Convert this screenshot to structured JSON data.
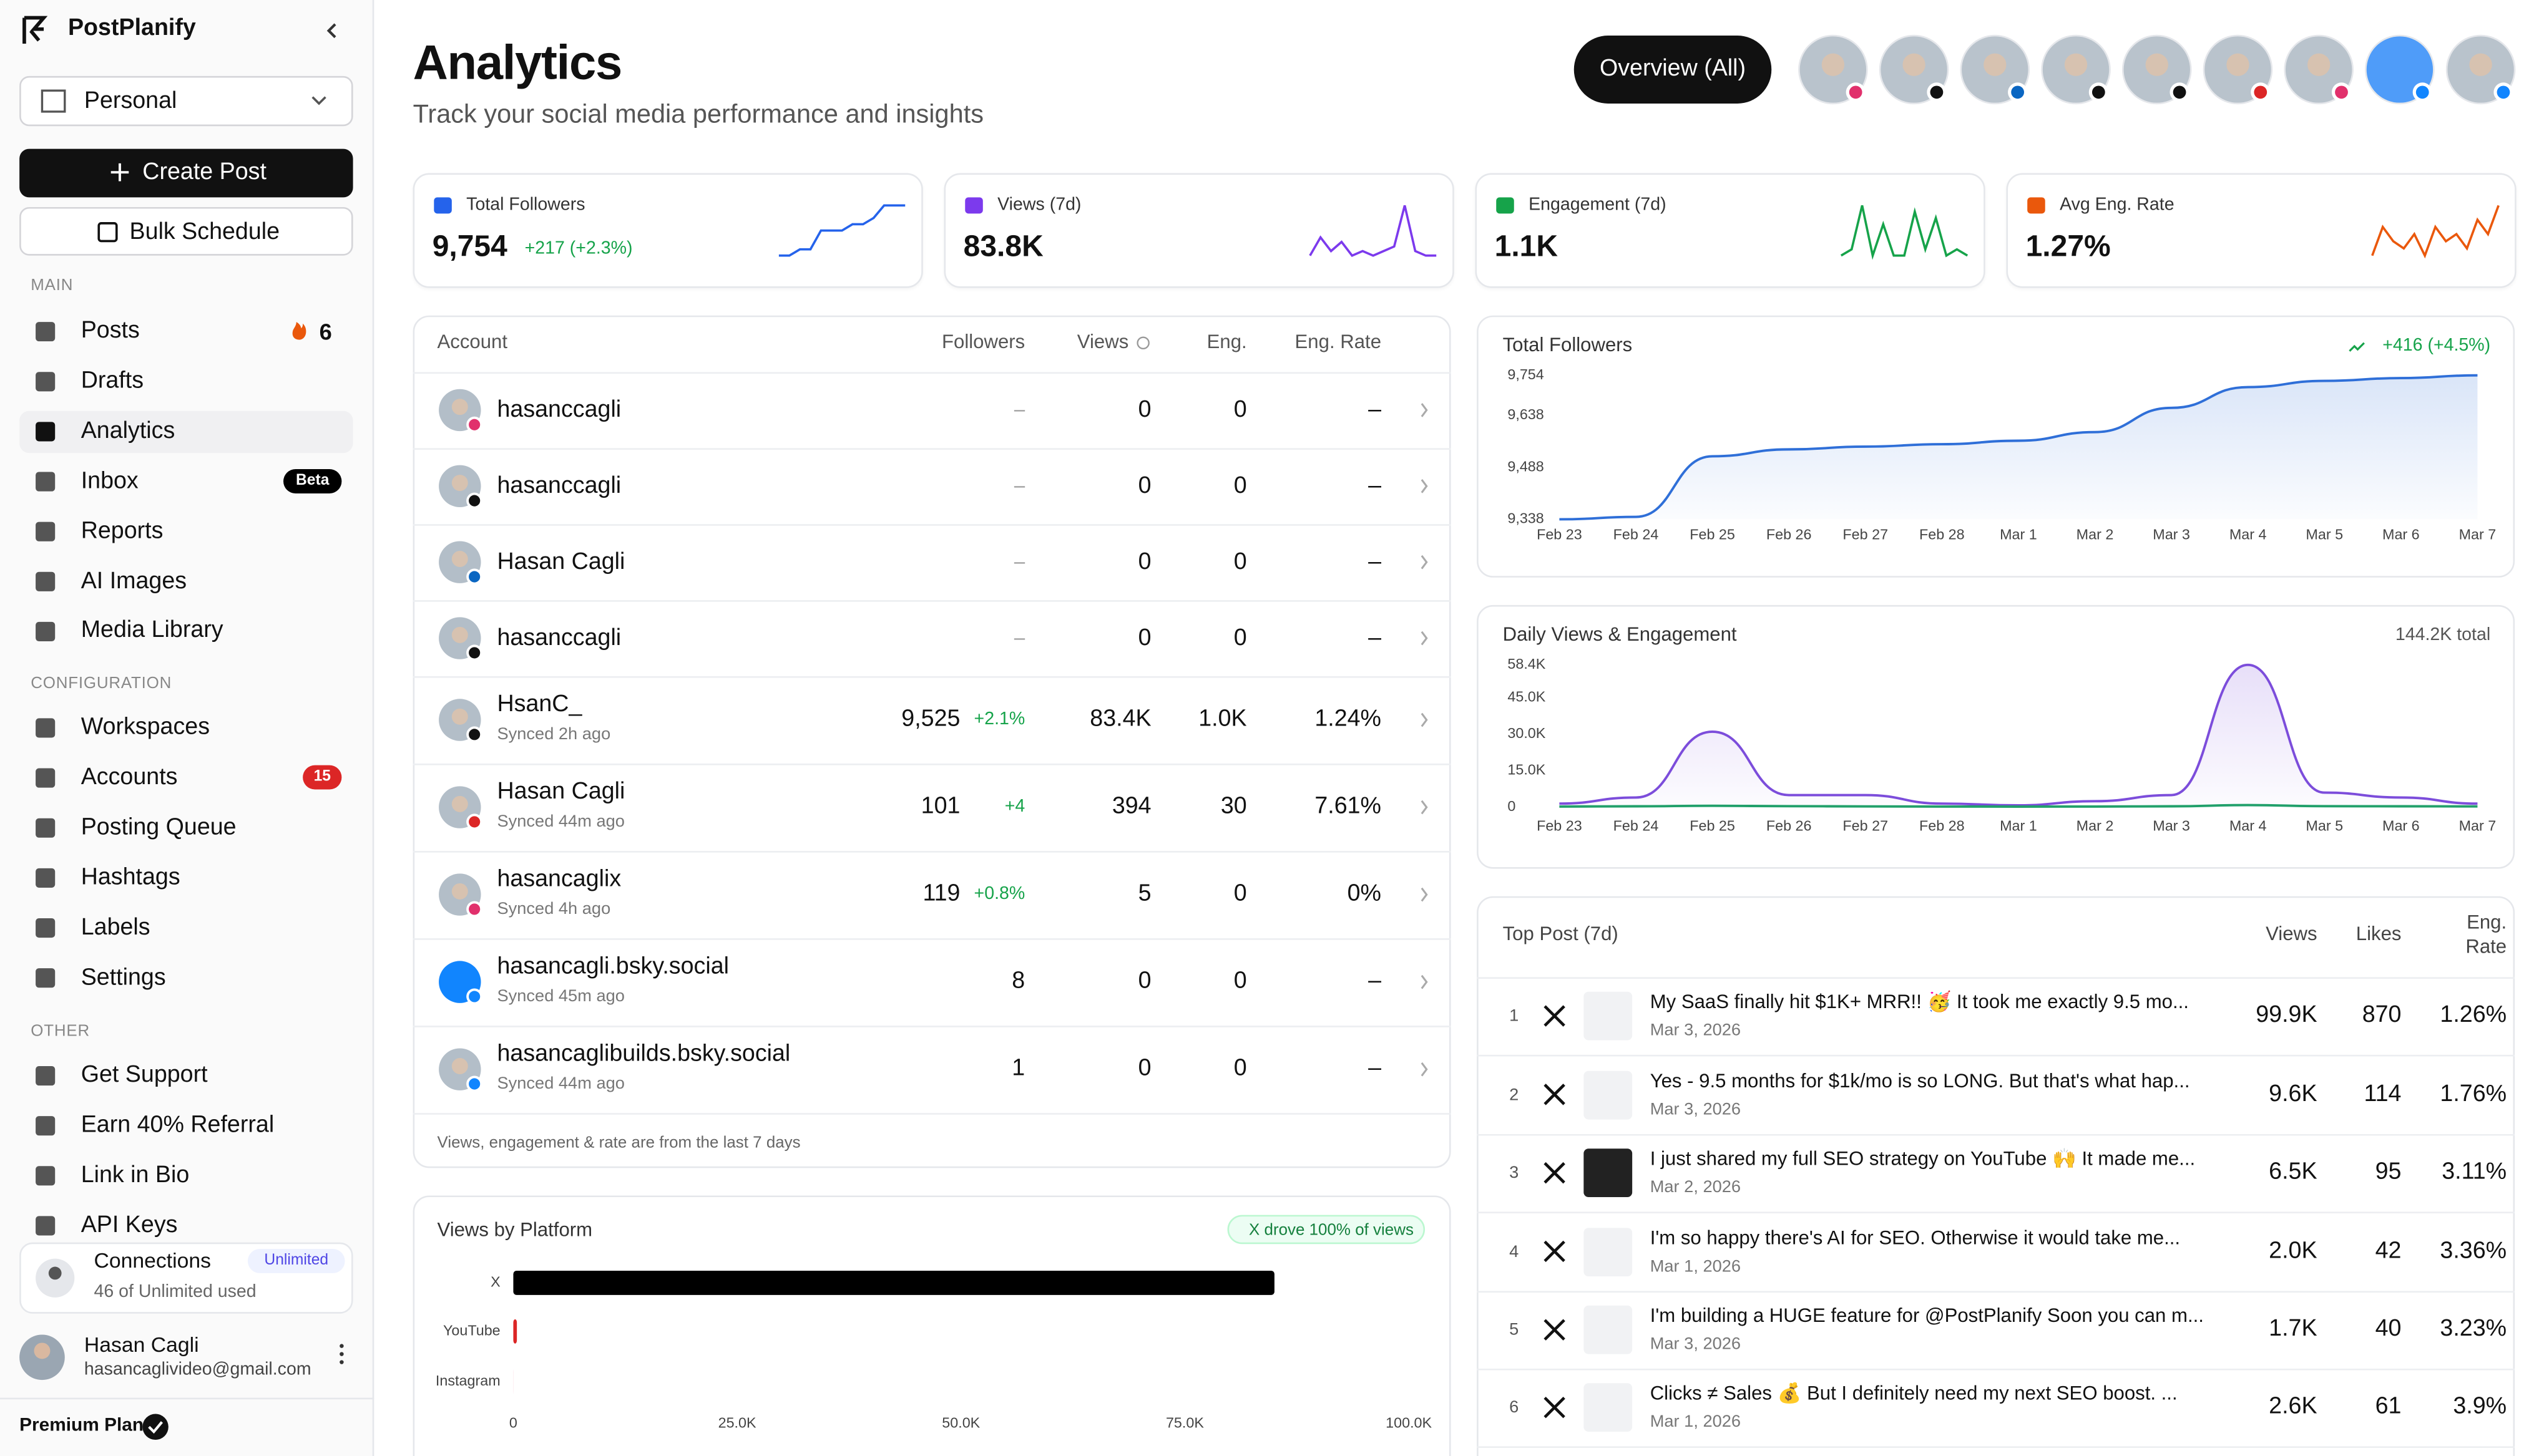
{
  "sidebar": {
    "brand": "PostPlanify",
    "workspace": "Personal",
    "create_button": "Create Post",
    "bulk_button": "Bulk Schedule",
    "sections": [
      {
        "title": "MAIN",
        "items": [
          {
            "label": "Posts",
            "badge": "6"
          },
          {
            "label": "Drafts"
          },
          {
            "label": "Analytics",
            "active": true
          },
          {
            "label": "Inbox",
            "badge": "Beta",
            "badge_color": "#000000"
          },
          {
            "label": "Reports"
          },
          {
            "label": "AI Images"
          },
          {
            "label": "Media Library"
          }
        ]
      },
      {
        "title": "CONFIGURATION",
        "items": [
          {
            "label": "Workspaces"
          },
          {
            "label": "Accounts",
            "badge": "15",
            "badge_color": "#dc2626"
          },
          {
            "label": "Posting Queue"
          },
          {
            "label": "Hashtags"
          },
          {
            "label": "Labels"
          },
          {
            "label": "Settings"
          }
        ]
      },
      {
        "title": "OTHER",
        "items": [
          {
            "label": "Get Support"
          },
          {
            "label": "Earn 40% Referral"
          },
          {
            "label": "Link in Bio"
          },
          {
            "label": "API Keys"
          }
        ]
      }
    ],
    "connections": {
      "title": "Connections",
      "badge": "Unlimited",
      "usage": "46 of Unlimited used"
    },
    "user": {
      "name": "Hasan Cagli",
      "email": "hasancaglivideo@gmail.com"
    },
    "plan": "Premium Plan"
  },
  "header": {
    "title": "Analytics",
    "subtitle": "Track your social media performance and insights",
    "overview_button": "Overview (All)"
  },
  "stats": [
    {
      "label": "Total Followers",
      "value": "9,754",
      "delta": "+217 (+2.3%)",
      "color": "#2563eb",
      "sparkline": [
        2,
        2,
        3,
        3,
        6,
        6,
        6,
        7,
        7,
        8,
        10,
        10,
        10
      ]
    },
    {
      "label": "Views (7d)",
      "value": "83.8K",
      "color": "#7c3aed",
      "sparkline": [
        1,
        5,
        2,
        4,
        1,
        2,
        1,
        2,
        3,
        12,
        2,
        1,
        1
      ]
    },
    {
      "label": "Engagement (7d)",
      "value": "1.1K",
      "color": "#16a34a",
      "sparkline": [
        2,
        3,
        10,
        2,
        7,
        2,
        2,
        9,
        3,
        8,
        2,
        3,
        2
      ]
    },
    {
      "label": "Avg Eng. Rate",
      "value": "1.27%",
      "color": "#ea580c",
      "sparkline": [
        3,
        7,
        5,
        4,
        6,
        3,
        7,
        5,
        6,
        4,
        8,
        6,
        10
      ]
    }
  ],
  "accounts": {
    "headers": [
      "Account",
      "Followers",
      "Views",
      "Eng.",
      "Eng. Rate"
    ],
    "rows": [
      {
        "name": "hasanccagli",
        "followers": "–",
        "views": "0",
        "engagement": "0",
        "rate": "–"
      },
      {
        "name": "hasanccagli",
        "followers": "–",
        "views": "0",
        "engagement": "0",
        "rate": "–"
      },
      {
        "name": "Hasan Cagli",
        "followers": "–",
        "views": "0",
        "engagement": "0",
        "rate": "–"
      },
      {
        "name": "hasanccagli",
        "followers": "–",
        "views": "0",
        "engagement": "0",
        "rate": "–"
      },
      {
        "name": "HsanC_",
        "synced": "Synced 2h ago",
        "followers": "9,525",
        "followers_delta": "+2.1%",
        "views": "83.4K",
        "engagement": "1.0K",
        "rate": "1.24%"
      },
      {
        "name": "Hasan Cagli",
        "synced": "Synced 44m ago",
        "followers": "101",
        "followers_delta": "+4",
        "views": "394",
        "engagement": "30",
        "rate": "7.61%"
      },
      {
        "name": "hasancaglix",
        "synced": "Synced 4h ago",
        "followers": "119",
        "followers_delta": "+0.8%",
        "views": "5",
        "engagement": "0",
        "rate": "0%"
      },
      {
        "name": "hasancagli.bsky.social",
        "synced": "Synced 45m ago",
        "followers": "8",
        "views": "0",
        "engagement": "0",
        "rate": "–"
      },
      {
        "name": "hasancaglibuilds.bsky.social",
        "synced": "Synced 44m ago",
        "followers": "1",
        "views": "0",
        "engagement": "0",
        "rate": "–"
      }
    ],
    "note": "Views, engagement & rate are from the last 7 days"
  },
  "top_posts": {
    "headers": [
      "Top Post (7d)",
      "Views",
      "Likes",
      "Eng. Rate"
    ],
    "rows": [
      {
        "rank": "1",
        "text": "My SaaS finally hit $1K+ MRR!! 🥳 It took me exactly 9.5 mo...",
        "date": "Mar 3, 2026",
        "views": "99.9K",
        "likes": "870",
        "rate": "1.26%"
      },
      {
        "rank": "2",
        "text": "Yes - 9.5 months for $1k/mo is so LONG. But that's what hap...",
        "date": "Mar 3, 2026",
        "views": "9.6K",
        "likes": "114",
        "rate": "1.76%"
      },
      {
        "rank": "3",
        "text": "I just shared my full SEO strategy on YouTube 🙌 It made me...",
        "date": "Mar 2, 2026",
        "views": "6.5K",
        "likes": "95",
        "rate": "3.11%"
      },
      {
        "rank": "4",
        "text": "I'm so happy there's AI for SEO. Otherwise it would take me...",
        "date": "Mar 1, 2026",
        "views": "2.0K",
        "likes": "42",
        "rate": "3.36%"
      },
      {
        "rank": "5",
        "text": "I'm building a HUGE feature for @PostPlanify Soon you can m...",
        "date": "Mar 3, 2026",
        "views": "1.7K",
        "likes": "40",
        "rate": "3.23%"
      },
      {
        "rank": "6",
        "text": "Clicks ≠ Sales 💰 But I definitely need my next SEO boost. ...",
        "date": "Mar 1, 2026",
        "views": "2.6K",
        "likes": "61",
        "rate": "3.9%"
      }
    ]
  },
  "chart_data": [
    {
      "type": "line",
      "title": "Total Followers",
      "annotation": "+416 (+4.5%)",
      "categories": [
        "Feb 23",
        "Feb 24",
        "Feb 25",
        "Feb 26",
        "Feb 27",
        "Feb 28",
        "Mar 1",
        "Mar 2",
        "Mar 3",
        "Mar 4",
        "Mar 5",
        "Mar 6",
        "Mar 7"
      ],
      "series": [
        {
          "color": "#2f6fd8",
          "values": [
            9338,
            9345,
            9520,
            9540,
            9548,
            9555,
            9565,
            9590,
            9660,
            9720,
            9738,
            9746,
            9754
          ]
        }
      ],
      "ylim": [
        9338,
        9754
      ],
      "yticks": [
        {
          "value": 9338,
          "label": "9,338"
        },
        {
          "value": 9488,
          "label": "9,488"
        },
        {
          "value": 9638,
          "label": "9,638"
        },
        {
          "value": 9754,
          "label": "9,754"
        }
      ]
    },
    {
      "type": "line",
      "title": "Daily Views & Engagement",
      "annotation": "144.2K total",
      "categories": [
        "Feb 23",
        "Feb 24",
        "Feb 25",
        "Feb 26",
        "Feb 27",
        "Feb 28",
        "Mar 1",
        "Mar 2",
        "Mar 3",
        "Mar 4",
        "Mar 5",
        "Mar 6",
        "Mar 7"
      ],
      "series": [
        {
          "color": "#7c4ddb",
          "values": [
            1500,
            4000,
            31000,
            5000,
            5000,
            1500,
            800,
            2500,
            5000,
            58400,
            6000,
            4000,
            1500
          ]
        },
        {
          "color": "#22a06b",
          "values": [
            300,
            400,
            600,
            450,
            350,
            300,
            250,
            300,
            400,
            900,
            450,
            400,
            350
          ]
        }
      ],
      "ylim": [
        0,
        58400
      ],
      "yticks": [
        0,
        {
          "value": 15000,
          "label": "15.0K"
        },
        {
          "value": 30000,
          "label": "30.0K"
        },
        {
          "value": 45000,
          "label": "45.0K"
        },
        {
          "value": 58400,
          "label": "58.4K"
        }
      ]
    },
    {
      "type": "bar",
      "title": "Views by Platform",
      "annotation": "X drove 100% of views",
      "categories": [
        "X",
        "YouTube",
        "Instagram"
      ],
      "values": [
        85000,
        400,
        5
      ],
      "colors": [
        "#000000",
        "#dc2626",
        "#e1306c"
      ],
      "xlim": [
        0,
        100000
      ],
      "xticks": [
        0,
        {
          "value": 25000,
          "label": "25.0K"
        },
        {
          "value": 50000,
          "label": "50.0K"
        },
        {
          "value": 75000,
          "label": "75.0K"
        },
        {
          "value": 100000,
          "label": "100.0K"
        }
      ]
    }
  ]
}
